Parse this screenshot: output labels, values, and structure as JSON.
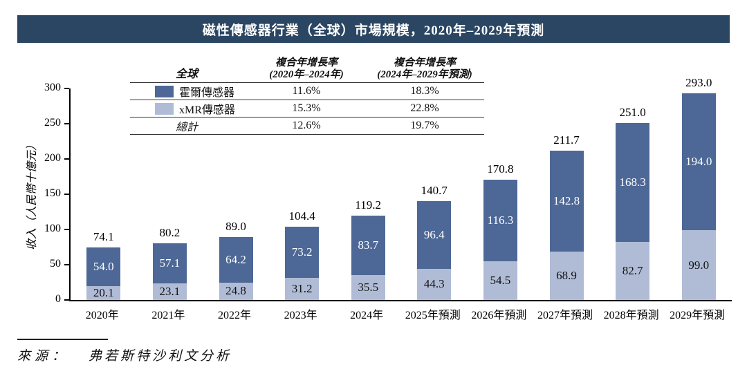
{
  "title_bar": {
    "text": "磁性傳感器行業（全球）市場規模，2020年–2029年預測"
  },
  "legend_table": {
    "header": {
      "col1": "全球",
      "col2_line1": "複合年增長率",
      "col2_line2": "(2020年–2024年)",
      "col3_line1": "複合年增長率",
      "col3_line2": "(2024年–2029年預測)"
    },
    "rows": [
      {
        "label": "霍爾傳感器",
        "cagr_2020_2024": "11.6%",
        "cagr_2024_2029": "18.3%"
      },
      {
        "label": "xMR傳感器",
        "cagr_2020_2024": "15.3%",
        "cagr_2024_2029": "22.8%"
      },
      {
        "label": "總計",
        "cagr_2020_2024": "12.6%",
        "cagr_2024_2029": "19.7%"
      }
    ]
  },
  "chart_data": {
    "type": "bar",
    "stacked": true,
    "title": "磁性傳感器行業（全球）市場規模，2020年–2029年預測",
    "xlabel": "",
    "ylabel": "收入（人民幣十億元）",
    "ylim": [
      0,
      300
    ],
    "yticks": [
      0,
      50,
      100,
      150,
      200,
      250,
      300
    ],
    "grid": false,
    "legend_position": "top-table",
    "categories": [
      "2020年",
      "2021年",
      "2022年",
      "2023年",
      "2024年",
      "2025年預測",
      "2026年預測",
      "2027年預測",
      "2028年預測",
      "2029年預測"
    ],
    "series": [
      {
        "name": "xMR傳感器",
        "color": "#b0bcd6",
        "values": [
          20.1,
          23.1,
          24.8,
          31.2,
          35.5,
          44.3,
          54.5,
          68.9,
          82.7,
          99.0
        ]
      },
      {
        "name": "霍爾傳感器",
        "color": "#4d6896",
        "values": [
          54.0,
          57.1,
          64.2,
          73.2,
          83.7,
          96.4,
          116.3,
          142.8,
          168.3,
          194.0
        ]
      }
    ],
    "totals": [
      74.1,
      80.2,
      89.0,
      104.4,
      119.2,
      140.7,
      170.8,
      211.7,
      251.0,
      293.0
    ]
  },
  "source": {
    "label": "來源：",
    "text": "弗若斯特沙利文分析"
  },
  "colors": {
    "title_bar_bg": "#2a4663",
    "hall": "#4d6896",
    "xmr": "#b0bcd6",
    "axis": "#000000",
    "label_on_dark": "#ffffff",
    "label_on_light": "#111111"
  }
}
